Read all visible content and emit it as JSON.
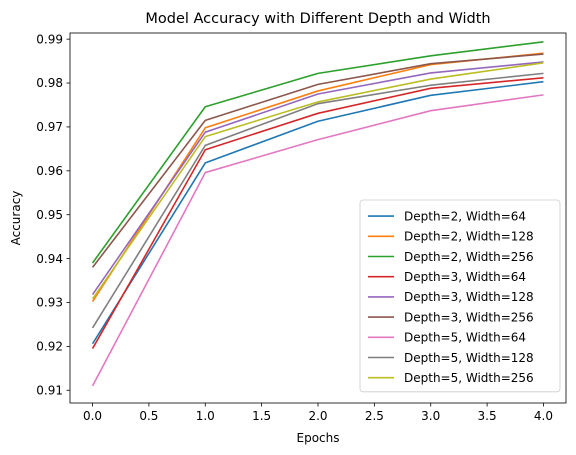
{
  "chart_data": {
    "type": "line",
    "title": "Model Accuracy with Different Depth and Width",
    "xlabel": "Epochs",
    "ylabel": "Accuracy",
    "xlim": [
      -0.2,
      4.2
    ],
    "ylim": [
      0.9071,
      0.9914
    ],
    "xticks": [
      0.0,
      0.5,
      1.0,
      1.5,
      2.0,
      2.5,
      3.0,
      3.5,
      4.0
    ],
    "xtick_labels": [
      "0.0",
      "0.5",
      "1.0",
      "1.5",
      "2.0",
      "2.5",
      "3.0",
      "3.5",
      "4.0"
    ],
    "yticks": [
      0.91,
      0.92,
      0.93,
      0.94,
      0.95,
      0.96,
      0.97,
      0.98,
      0.99
    ],
    "ytick_labels": [
      "0.91",
      "0.92",
      "0.93",
      "0.94",
      "0.95",
      "0.96",
      "0.97",
      "0.98",
      "0.99"
    ],
    "grid": false,
    "legend_position": "lower-right",
    "x": [
      0,
      1,
      2,
      3,
      4
    ],
    "series": [
      {
        "name": "Depth=2, Width=64",
        "color": "#1f77b4",
        "values": [
          0.9206,
          0.9618,
          0.9713,
          0.9772,
          0.9803
        ]
      },
      {
        "name": "Depth=2, Width=128",
        "color": "#ff7f0e",
        "values": [
          0.9302,
          0.9698,
          0.9782,
          0.9842,
          0.9868
        ]
      },
      {
        "name": "Depth=2, Width=256",
        "color": "#2ca02c",
        "values": [
          0.939,
          0.9746,
          0.9822,
          0.9862,
          0.9894
        ]
      },
      {
        "name": "Depth=3, Width=64",
        "color": "#d62728",
        "values": [
          0.9195,
          0.9648,
          0.9731,
          0.9788,
          0.9812
        ]
      },
      {
        "name": "Depth=3, Width=128",
        "color": "#9467bd",
        "values": [
          0.9318,
          0.9688,
          0.9775,
          0.9823,
          0.9848
        ]
      },
      {
        "name": "Depth=3, Width=256",
        "color": "#8c564b",
        "values": [
          0.938,
          0.9715,
          0.9797,
          0.9844,
          0.9866
        ]
      },
      {
        "name": "Depth=5, Width=64",
        "color": "#e377c2",
        "values": [
          0.911,
          0.9596,
          0.9671,
          0.9737,
          0.9773
        ]
      },
      {
        "name": "Depth=5, Width=128",
        "color": "#7f7f7f",
        "values": [
          0.9242,
          0.9658,
          0.9753,
          0.9795,
          0.9822
        ]
      },
      {
        "name": "Depth=5, Width=256",
        "color": "#bcbd22",
        "values": [
          0.9308,
          0.9678,
          0.9757,
          0.9809,
          0.9846
        ]
      }
    ]
  }
}
